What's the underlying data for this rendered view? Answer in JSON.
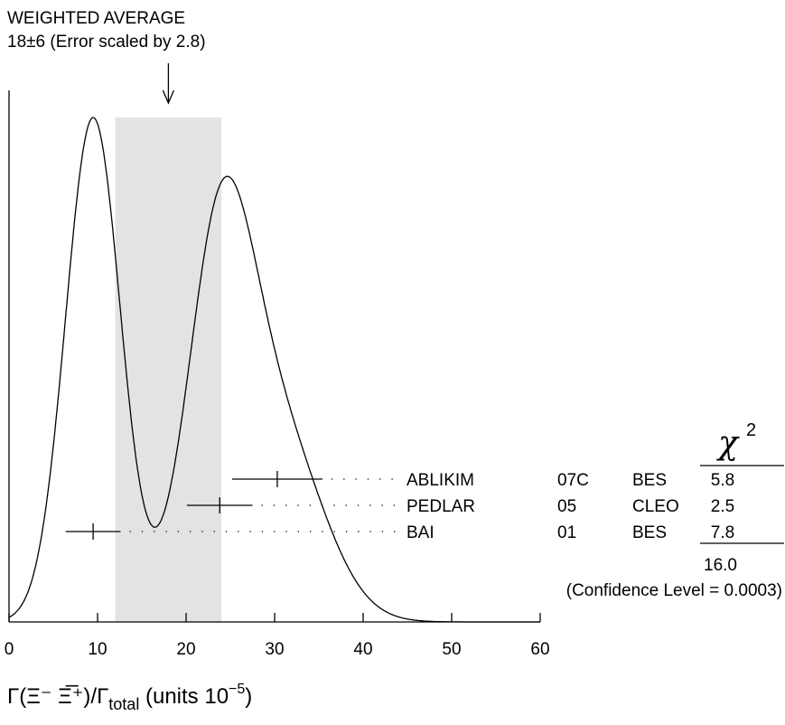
{
  "chart_data": {
    "type": "ideogram",
    "title": "WEIGHTED AVERAGE",
    "subtitle": "18±6 (Error scaled by 2.8)",
    "average": 18,
    "average_error": 6,
    "measurements": [
      {
        "author": "ABLIKIM",
        "year": "07C",
        "experiment": "BES",
        "value": 30.3,
        "error": 5.1,
        "chi2": 5.8
      },
      {
        "author": "PEDLAR",
        "year": "05",
        "experiment": "CLEO",
        "value": 23.8,
        "error": 3.7,
        "chi2": 2.5
      },
      {
        "author": "BAI",
        "year": "01",
        "experiment": "BES",
        "value": 9.5,
        "error": 3.1,
        "chi2": 7.8
      }
    ],
    "chi2_header": "χ",
    "chi2_header_sup": "2",
    "chi2_total": "16.0",
    "confidence": "(Confidence Level = 0.0003)",
    "xlim": [
      0,
      60
    ],
    "xticks": [
      0,
      10,
      20,
      30,
      40,
      50,
      60
    ],
    "x_label": [
      "Γ(Ξ⁻ Ξ̅⁺)/Γ",
      "total",
      " (units 10",
      "−5",
      ")"
    ],
    "band_color": "#e3e3e3",
    "curve_color": "#000000"
  }
}
